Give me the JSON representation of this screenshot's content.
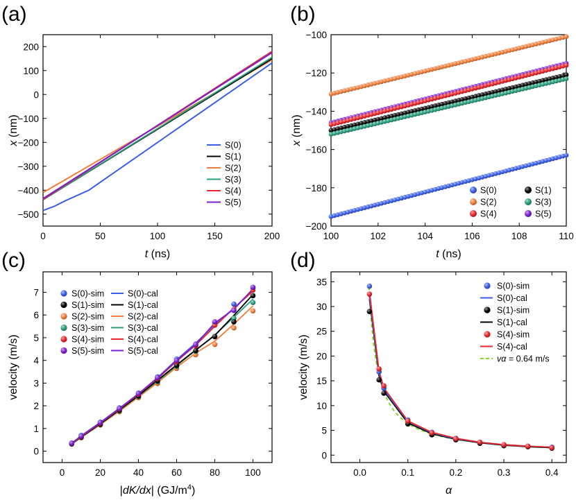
{
  "chart_data": [
    {
      "panel_label": "(a)",
      "type": "line",
      "xlabel_var": "t",
      "xlabel_unit": " (ns)",
      "ylabel_var": "x",
      "ylabel_unit": " (nm)",
      "xlim": [
        0,
        200
      ],
      "ylim": [
        -550,
        250
      ],
      "xticks": [
        0,
        50,
        100,
        150,
        200
      ],
      "yticks": [
        -500,
        -400,
        -300,
        -200,
        -100,
        0,
        100,
        200
      ],
      "legend_position": "lower-right",
      "series": [
        {
          "name": "S(0)",
          "color": "#3a5ee8",
          "x": [
            0,
            10,
            20,
            40,
            200
          ],
          "y": [
            -485,
            -467,
            -443,
            -400,
            132
          ]
        },
        {
          "name": "S(1)",
          "color": "#000000",
          "x": [
            0,
            200
          ],
          "y": [
            -440,
            150
          ]
        },
        {
          "name": "S(2)",
          "color": "#f07e3a",
          "x": [
            0,
            200
          ],
          "y": [
            -410,
            145
          ]
        },
        {
          "name": "S(3)",
          "color": "#2a9d7f",
          "x": [
            0,
            200
          ],
          "y": [
            -440,
            155
          ]
        },
        {
          "name": "S(4)",
          "color": "#e8262b",
          "x": [
            0,
            200
          ],
          "y": [
            -438,
            180
          ]
        },
        {
          "name": "S(5)",
          "color": "#7b1fd0",
          "x": [
            0,
            200
          ],
          "y": [
            -435,
            175
          ]
        }
      ]
    },
    {
      "panel_label": "(b)",
      "type": "scatter",
      "xlabel_var": "t",
      "xlabel_unit": " (ns)",
      "ylabel_var": "x",
      "ylabel_unit": " (nm)",
      "xlim": [
        100,
        110
      ],
      "ylim": [
        -200,
        -100
      ],
      "xticks": [
        100,
        102,
        104,
        106,
        108,
        110
      ],
      "yticks": [
        -200,
        -180,
        -160,
        -140,
        -120,
        -100
      ],
      "legend_position": "lower-right",
      "series": [
        {
          "name": "S(0)",
          "color": "#3a5ee8",
          "start": [
            100,
            -195
          ],
          "end": [
            110,
            -163
          ]
        },
        {
          "name": "S(1)",
          "color": "#000000",
          "start": [
            100,
            -150
          ],
          "end": [
            110,
            -121
          ]
        },
        {
          "name": "S(2)",
          "color": "#f07e3a",
          "start": [
            100,
            -131
          ],
          "end": [
            110,
            -101
          ]
        },
        {
          "name": "S(3)",
          "color": "#2a9d7f",
          "start": [
            100,
            -152
          ],
          "end": [
            110,
            -123
          ]
        },
        {
          "name": "S(4)",
          "color": "#e8262b",
          "start": [
            100,
            -147
          ],
          "end": [
            110,
            -116
          ]
        },
        {
          "name": "S(5)",
          "color": "#7b1fd0",
          "start": [
            100,
            -146
          ],
          "end": [
            110,
            -115
          ]
        }
      ]
    },
    {
      "panel_label": "(c)",
      "type": "line",
      "xlabel_prefix": "|",
      "xlabel_var": "dK/dx",
      "xlabel_unit": "| (GJ/m",
      "xlabel_sup": "4",
      "xlabel_close": ")",
      "ylabel": "velocity (m/s)",
      "xlim": [
        -10,
        110
      ],
      "ylim": [
        -0.5,
        7.9
      ],
      "xticks": [
        0,
        20,
        40,
        60,
        80,
        100
      ],
      "yticks": [
        0,
        1,
        2,
        3,
        4,
        5,
        6,
        7
      ],
      "legend_position": "top-left",
      "x": [
        5,
        10,
        20,
        30,
        40,
        50,
        60,
        70,
        80,
        90,
        100
      ],
      "series": [
        {
          "name": "S(0)",
          "color": "#3a5ee8",
          "sim": [
            0.36,
            0.7,
            1.28,
            1.91,
            2.56,
            3.28,
            4.06,
            4.72,
            5.63,
            6.48,
            7.2
          ],
          "cal": [
            0.35,
            0.68,
            1.27,
            1.89,
            2.53,
            3.24,
            4.03,
            4.76,
            5.58,
            6.3,
            7.1
          ]
        },
        {
          "name": "S(1)",
          "color": "#000000",
          "sim": [
            0.33,
            0.62,
            1.19,
            1.8,
            2.43,
            3.1,
            3.78,
            4.43,
            5.05,
            5.7,
            6.85
          ],
          "cal": [
            0.33,
            0.63,
            1.21,
            1.82,
            2.45,
            3.13,
            3.8,
            4.46,
            5.1,
            5.98,
            6.9
          ]
        },
        {
          "name": "S(2)",
          "color": "#f07e3a",
          "sim": [
            0.31,
            0.59,
            1.15,
            1.74,
            2.36,
            2.98,
            3.65,
            4.25,
            4.7,
            5.43,
            6.18
          ],
          "cal": [
            0.31,
            0.6,
            1.17,
            1.76,
            2.38,
            3.02,
            3.7,
            4.32,
            4.85,
            5.6,
            6.4
          ]
        },
        {
          "name": "S(3)",
          "color": "#2a9d7f",
          "sim": [
            0.32,
            0.61,
            1.18,
            1.78,
            2.41,
            3.06,
            3.74,
            4.4,
            5.04,
            5.85,
            6.55
          ],
          "cal": [
            0.32,
            0.62,
            1.19,
            1.8,
            2.43,
            3.08,
            3.77,
            4.44,
            5.12,
            5.9,
            6.7
          ]
        },
        {
          "name": "S(4)",
          "color": "#e8262b",
          "sim": [
            0.34,
            0.64,
            1.23,
            1.85,
            2.5,
            3.2,
            3.95,
            4.65,
            5.55,
            6.25,
            7.1
          ],
          "cal": [
            0.34,
            0.65,
            1.24,
            1.86,
            2.51,
            3.2,
            3.96,
            4.67,
            5.5,
            6.3,
            7.05
          ]
        },
        {
          "name": "S(5)",
          "color": "#7b1fd0",
          "sim": [
            0.35,
            0.66,
            1.26,
            1.88,
            2.54,
            3.24,
            4.0,
            4.7,
            5.7,
            6.2,
            7.22
          ],
          "cal": [
            0.35,
            0.67,
            1.26,
            1.88,
            2.53,
            3.23,
            4.0,
            4.7,
            5.65,
            6.25,
            7.15
          ]
        }
      ]
    },
    {
      "panel_label": "(d)",
      "type": "line",
      "xlabel_var": "α",
      "ylabel": "velocity (m/s)",
      "xlim": [
        -0.06,
        0.43
      ],
      "ylim": [
        -1.5,
        37
      ],
      "xticks": [
        0.0,
        0.1,
        0.2,
        0.3,
        0.4
      ],
      "xtick_labels": [
        "0.0",
        "0.1",
        "0.2",
        "0.3",
        "0.4"
      ],
      "yticks": [
        0,
        5,
        10,
        15,
        20,
        25,
        30,
        35
      ],
      "legend_position": "top-right",
      "x": [
        0.02,
        0.04,
        0.05,
        0.1,
        0.15,
        0.2,
        0.25,
        0.3,
        0.35,
        0.4
      ],
      "series": [
        {
          "name": "S(0)",
          "color": "#3a5ee8",
          "sim": [
            34.1,
            16.8,
            13.5,
            7.1,
            4.6,
            3.4,
            2.6,
            2.1,
            1.8,
            1.6
          ],
          "cal": [
            32.0,
            16.5,
            13.2,
            6.8,
            4.5,
            3.3,
            2.6,
            2.1,
            1.8,
            1.6
          ]
        },
        {
          "name": "S(1)",
          "color": "#000000",
          "sim": [
            29.0,
            15.2,
            12.5,
            6.3,
            4.1,
            3.1,
            2.4,
            1.9,
            1.7,
            1.4
          ],
          "cal": [
            31.5,
            16.0,
            12.9,
            6.5,
            4.3,
            3.2,
            2.5,
            2.0,
            1.7,
            1.5
          ]
        },
        {
          "name": "S(4)",
          "color": "#e8262b",
          "sim": [
            32.5,
            17.4,
            14.0,
            6.9,
            4.5,
            3.3,
            2.6,
            2.1,
            1.8,
            1.5
          ],
          "cal": [
            33.0,
            17.0,
            13.6,
            6.9,
            4.6,
            3.4,
            2.6,
            2.1,
            1.8,
            1.6
          ]
        }
      ],
      "fit_curve": {
        "product": 0.64,
        "color": "#88d82c",
        "label_var": "vα",
        "label_rest": " = 0.64 m/s"
      }
    }
  ]
}
